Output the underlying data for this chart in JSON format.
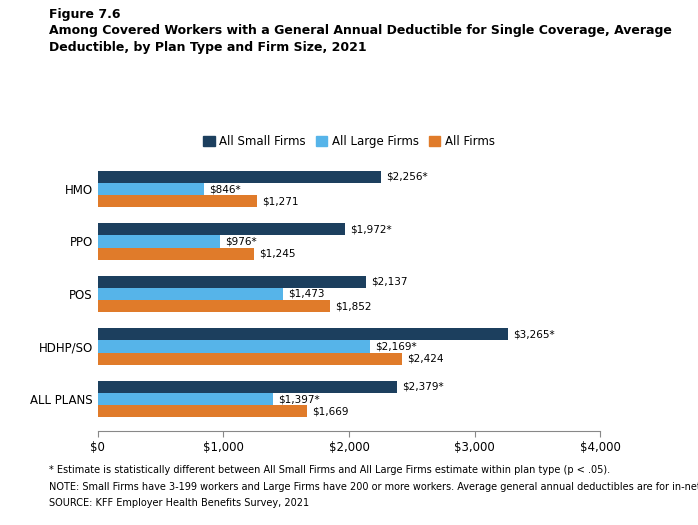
{
  "title_line1": "Figure 7.6",
  "title_line2": "Among Covered Workers with a General Annual Deductible for Single Coverage, Average",
  "title_line3": "Deductible, by Plan Type and Firm Size, 2021",
  "categories": [
    "ALL PLANS",
    "HDHP/SO",
    "POS",
    "PPO",
    "HMO"
  ],
  "series": {
    "All Small Firms": [
      2379,
      3265,
      2137,
      1972,
      2256
    ],
    "All Large Firms": [
      1397,
      2169,
      1473,
      976,
      846
    ],
    "All Firms": [
      1669,
      2424,
      1852,
      1245,
      1271
    ]
  },
  "labels": {
    "All Small Firms": [
      "$2,379*",
      "$3,265*",
      "$2,137",
      "$1,972*",
      "$2,256*"
    ],
    "All Large Firms": [
      "$1,397*",
      "$2,169*",
      "$1,473",
      "$976*",
      "$846*"
    ],
    "All Firms": [
      "$1,669",
      "$2,424",
      "$1,852",
      "$1,245",
      "$1,271"
    ]
  },
  "colors": {
    "All Small Firms": "#1c3f5e",
    "All Large Firms": "#56b4e9",
    "All Firms": "#e07b2a"
  },
  "xlim": [
    0,
    4000
  ],
  "xticks": [
    0,
    1000,
    2000,
    3000,
    4000
  ],
  "xtick_labels": [
    "$0",
    "$1,000",
    "$2,000",
    "$3,000",
    "$4,000"
  ],
  "footnote1": "* Estimate is statistically different between All Small Firms and All Large Firms estimate within plan type (p < .05).",
  "footnote2": "NOTE: Small Firms have 3-199 workers and Large Firms have 200 or more workers. Average general annual deductibles are for in-network providers.",
  "footnote3": "SOURCE: KFF Employer Health Benefits Survey, 2021"
}
